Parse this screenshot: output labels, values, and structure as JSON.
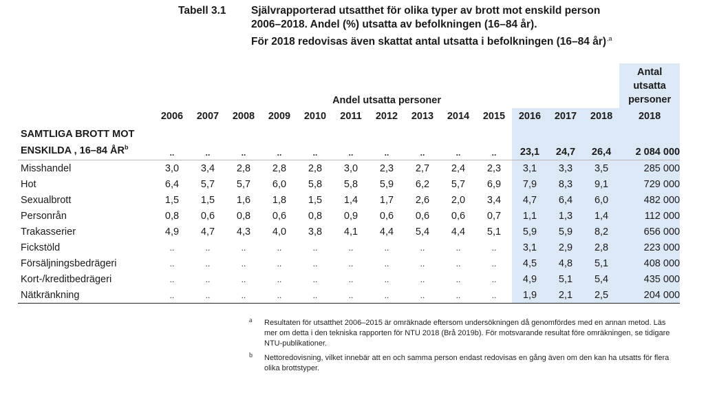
{
  "caption": {
    "label": "Tabell 3.1",
    "line1": "Självrapporterad utsatthet för olika typer av brott mot enskild person",
    "line2": "2006–2018. Andel (%) utsatta av befolkningen (16–84 år).",
    "line3": "För 2018 redovisas även skattat antal utsatta i befolkningen (16–84 år)",
    "line3_sup": ",a"
  },
  "table": {
    "group_header": "Andel utsatta personer",
    "antal_header": [
      "Antal",
      "utsatta",
      "personer"
    ],
    "years": [
      "2006",
      "2007",
      "2008",
      "2009",
      "2010",
      "2011",
      "2012",
      "2013",
      "2014",
      "2015",
      "2016",
      "2017",
      "2018"
    ],
    "antal_year": "2018",
    "first_row": {
      "label_line1": "SAMTLIGA BROTT MOT",
      "label_line2": "ENSKILDA , 16–84 ÅR",
      "label_sup": "b",
      "values": [
        "..",
        "..",
        "..",
        "..",
        "..",
        "..",
        "..",
        "..",
        "..",
        "..",
        "23,1",
        "24,7",
        "26,4"
      ],
      "antal": "2 084 000"
    },
    "rows": [
      {
        "label": "Misshandel",
        "values": [
          "3,0",
          "3,4",
          "2,8",
          "2,8",
          "2,8",
          "3,0",
          "2,3",
          "2,7",
          "2,4",
          "2,3",
          "3,1",
          "3,3",
          "3,5"
        ],
        "antal": "285 000"
      },
      {
        "label": "Hot",
        "values": [
          "6,4",
          "5,7",
          "5,7",
          "6,0",
          "5,8",
          "5,8",
          "5,9",
          "6,2",
          "5,7",
          "6,9",
          "7,9",
          "8,3",
          "9,1"
        ],
        "antal": "729 000"
      },
      {
        "label": "Sexualbrott",
        "values": [
          "1,5",
          "1,5",
          "1,6",
          "1,8",
          "1,5",
          "1,4",
          "1,7",
          "2,6",
          "2,0",
          "3,4",
          "4,7",
          "6,4",
          "6,0"
        ],
        "antal": "482 000"
      },
      {
        "label": "Personrån",
        "values": [
          "0,8",
          "0,6",
          "0,8",
          "0,6",
          "0,8",
          "0,9",
          "0,6",
          "0,6",
          "0,6",
          "0,7",
          "1,1",
          "1,3",
          "1,4"
        ],
        "antal": "112 000"
      },
      {
        "label": "Trakasserier",
        "values": [
          "4,9",
          "4,7",
          "4,3",
          "4,0",
          "3,8",
          "4,1",
          "4,4",
          "5,4",
          "4,4",
          "5,1",
          "5,9",
          "5,9",
          "8,2"
        ],
        "antal": "656 000"
      },
      {
        "label": "Fickstöld",
        "values": [
          "..",
          "..",
          "..",
          "..",
          "..",
          "..",
          "..",
          "..",
          "..",
          "..",
          "3,1",
          "2,9",
          "2,8"
        ],
        "antal": "223 000"
      },
      {
        "label": "Försäljningsbedrägeri",
        "values": [
          "..",
          "..",
          "..",
          "..",
          "..",
          "..",
          "..",
          "..",
          "..",
          "..",
          "4,5",
          "4,8",
          "5,1"
        ],
        "antal": "408 000"
      },
      {
        "label": "Kort-/kreditbedrägeri",
        "values": [
          "..",
          "..",
          "..",
          "..",
          "..",
          "..",
          "..",
          "..",
          "..",
          "..",
          "4,9",
          "5,1",
          "5,4"
        ],
        "antal": "435 000"
      },
      {
        "label": "Nätkränkning",
        "values": [
          "..",
          "..",
          "..",
          "..",
          "..",
          "..",
          "..",
          "..",
          "..",
          "..",
          "1,9",
          "2,1",
          "2,5"
        ],
        "antal": "204 000"
      }
    ]
  },
  "footnotes": [
    {
      "mark": "a",
      "text": "Resultaten för utsatthet 2006–2015 är omräknade eftersom undersökningen då genomfördes med en annan metod. Läs mer om detta i den tekniska rapporten för NTU 2018 (Brå 2019b). För motsvarande resultat före omräkningen, se tidigare NTU-publikationer."
    },
    {
      "mark": "b",
      "text": "Nettoredovisning, vilket innebär att en och samma person endast redovisas en gång även om den kan ha utsatts för flera olika brottstyper."
    }
  ],
  "colors": {
    "shade": "#dce8f5",
    "rule": "#222222"
  }
}
